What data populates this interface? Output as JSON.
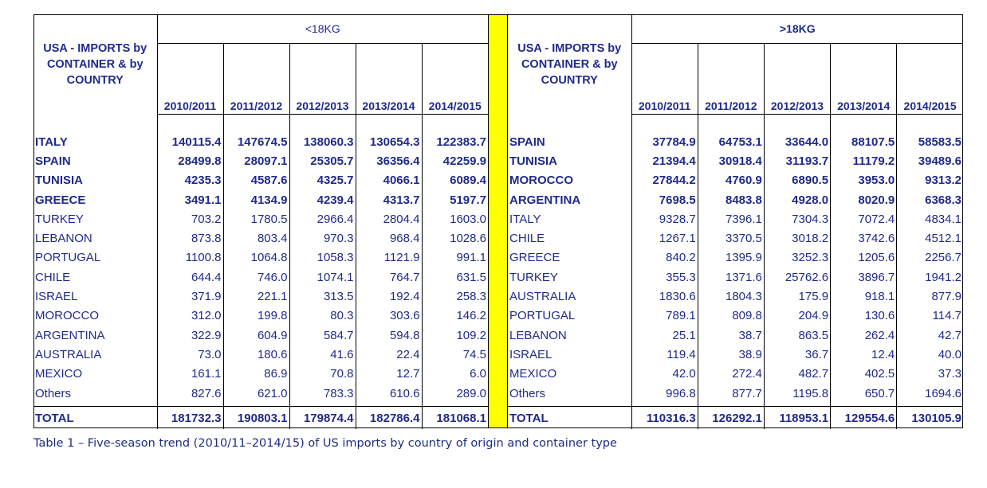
{
  "left": {
    "group_label": "<18KG",
    "country_header": "USA  - IMPORTS by CONTAINER & by COUNTRY",
    "years": [
      "2010/2011",
      "2011/2012",
      "2012/2013",
      "2013/2014",
      "2014/2015"
    ],
    "rows": [
      {
        "name": "ITALY",
        "bold": true,
        "values": [
          "140115.4",
          "147674.5",
          "138060.3",
          "130654.3",
          "122383.7"
        ]
      },
      {
        "name": "SPAIN",
        "bold": true,
        "values": [
          "28499.8",
          "28097.1",
          "25305.7",
          "36356.4",
          "42259.9"
        ]
      },
      {
        "name": "TUNISIA",
        "bold": true,
        "values": [
          "4235.3",
          "4587.6",
          "4325.7",
          "4066.1",
          "6089.4"
        ]
      },
      {
        "name": "GREECE",
        "bold": true,
        "values": [
          "3491.1",
          "4134.9",
          "4239.4",
          "4313.7",
          "5197.7"
        ]
      },
      {
        "name": "TURKEY",
        "bold": false,
        "values": [
          "703.2",
          "1780.5",
          "2966.4",
          "2804.4",
          "1603.0"
        ]
      },
      {
        "name": "LEBANON",
        "bold": false,
        "values": [
          "873.8",
          "803.4",
          "970.3",
          "968.4",
          "1028.6"
        ]
      },
      {
        "name": "PORTUGAL",
        "bold": false,
        "values": [
          "1100.8",
          "1064.8",
          "1058.3",
          "1121.9",
          "991.1"
        ]
      },
      {
        "name": "CHILE",
        "bold": false,
        "values": [
          "644.4",
          "746.0",
          "1074.1",
          "764.7",
          "631.5"
        ]
      },
      {
        "name": "ISRAEL",
        "bold": false,
        "values": [
          "371.9",
          "221.1",
          "313.5",
          "192.4",
          "258.3"
        ]
      },
      {
        "name": "MOROCCO",
        "bold": false,
        "values": [
          "312.0",
          "199.8",
          "80.3",
          "303.6",
          "146.2"
        ]
      },
      {
        "name": "ARGENTINA",
        "bold": false,
        "values": [
          "322.9",
          "604.9",
          "584.7",
          "594.8",
          "109.2"
        ]
      },
      {
        "name": "AUSTRALIA",
        "bold": false,
        "values": [
          "73.0",
          "180.6",
          "41.6",
          "22.4",
          "74.5"
        ]
      },
      {
        "name": "MEXICO",
        "bold": false,
        "values": [
          "161.1",
          "86.9",
          "70.8",
          "12.7",
          "6.0"
        ]
      },
      {
        "name": "Others",
        "bold": false,
        "values": [
          "827.6",
          "621.0",
          "783.3",
          "610.6",
          "289.0"
        ]
      }
    ],
    "total": {
      "name": "TOTAL",
      "values": [
        "181732.3",
        "190803.1",
        "179874.4",
        "182786.4",
        "181068.1"
      ]
    }
  },
  "right": {
    "group_label": ">18KG",
    "country_header": "USA  - IMPORTS by CONTAINER & by COUNTRY",
    "years": [
      "2010/2011",
      "2011/2012",
      "2012/2013",
      "2013/2014",
      "2014/2015"
    ],
    "rows": [
      {
        "name": "SPAIN",
        "bold": true,
        "values": [
          "37784.9",
          "64753.1",
          "33644.0",
          "88107.5",
          "58583.5"
        ]
      },
      {
        "name": "TUNISIA",
        "bold": true,
        "values": [
          "21394.4",
          "30918.4",
          "31193.7",
          "11179.2",
          "39489.6"
        ]
      },
      {
        "name": "MOROCCO",
        "bold": true,
        "values": [
          "27844.2",
          "4760.9",
          "6890.5",
          "3953.0",
          "9313.2"
        ]
      },
      {
        "name": "ARGENTINA",
        "bold": true,
        "values": [
          "7698.5",
          "8483.8",
          "4928.0",
          "8020.9",
          "6368.3"
        ]
      },
      {
        "name": "ITALY",
        "bold": false,
        "values": [
          "9328.7",
          "7396.1",
          "7304.3",
          "7072.4",
          "4834.1"
        ]
      },
      {
        "name": "CHILE",
        "bold": false,
        "values": [
          "1267.1",
          "3370.5",
          "3018.2",
          "3742.6",
          "4512.1"
        ]
      },
      {
        "name": "GREECE",
        "bold": false,
        "values": [
          "840.2",
          "1395.9",
          "3252.3",
          "1205.6",
          "2256.7"
        ]
      },
      {
        "name": "TURKEY",
        "bold": false,
        "values": [
          "355.3",
          "1371.6",
          "25762.6",
          "3896.7",
          "1941.2"
        ]
      },
      {
        "name": "AUSTRALIA",
        "bold": false,
        "values": [
          "1830.6",
          "1804.3",
          "175.9",
          "918.1",
          "877.9"
        ]
      },
      {
        "name": "PORTUGAL",
        "bold": false,
        "values": [
          "789.1",
          "809.8",
          "204.9",
          "130.6",
          "114.7"
        ]
      },
      {
        "name": "LEBANON",
        "bold": false,
        "values": [
          "25.1",
          "38.7",
          "863.5",
          "262.4",
          "42.7"
        ]
      },
      {
        "name": "ISRAEL",
        "bold": false,
        "values": [
          "119.4",
          "38.9",
          "36.7",
          "12.4",
          "40.0"
        ]
      },
      {
        "name": "MEXICO",
        "bold": false,
        "values": [
          "42.0",
          "272.4",
          "482.7",
          "402.5",
          "37.3"
        ]
      },
      {
        "name": "Others",
        "bold": false,
        "values": [
          "996.8",
          "877.7",
          "1195.8",
          "650.7",
          "1694.6"
        ]
      }
    ],
    "total": {
      "name": "TOTAL",
      "values": [
        "110316.3",
        "126292.1",
        "118953.1",
        "129554.6",
        "130105.9"
      ]
    }
  },
  "caption": "Table 1 – Five-season trend (2010/11–2014/15) of US imports by country of origin and container type",
  "colors": {
    "text": "#1f2a8a",
    "separator": "#ffff00",
    "caption": "#1e2c80"
  }
}
